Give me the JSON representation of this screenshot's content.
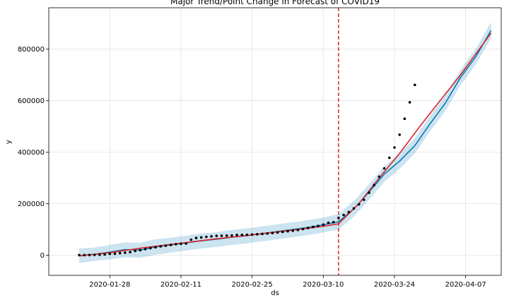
{
  "chart_data": {
    "type": "line",
    "title": "Major Trend/Point Change in Forecast of COVID19",
    "xlabel": "ds",
    "ylabel": "y",
    "x_tick_labels": [
      "2020-01-28",
      "2020-02-11",
      "2020-02-25",
      "2020-03-10",
      "2020-03-24",
      "2020-04-07"
    ],
    "y_tick_labels": [
      "0",
      "200000",
      "400000",
      "600000",
      "800000"
    ],
    "y_ticks": [
      0,
      200000,
      400000,
      600000,
      800000
    ],
    "xlim": [
      "2020-01-16",
      "2020-04-14"
    ],
    "ylim": [
      -78000,
      960000
    ],
    "grid": true,
    "changepoint": "2020-03-13",
    "colors": {
      "actual": "#000000",
      "forecast": "#0072b2",
      "trend": "#d62728",
      "interval": "#0072b2",
      "changepoint": "#d62728"
    },
    "series": [
      {
        "kind": "actual",
        "x": [
          "2020-01-22",
          "2020-01-23",
          "2020-01-24",
          "2020-01-25",
          "2020-01-26",
          "2020-01-27",
          "2020-01-28",
          "2020-01-29",
          "2020-01-30",
          "2020-01-31",
          "2020-02-01",
          "2020-02-02",
          "2020-02-03",
          "2020-02-04",
          "2020-02-05",
          "2020-02-06",
          "2020-02-07",
          "2020-02-08",
          "2020-02-09",
          "2020-02-10",
          "2020-02-11",
          "2020-02-12",
          "2020-02-13",
          "2020-02-14",
          "2020-02-15",
          "2020-02-16",
          "2020-02-17",
          "2020-02-18",
          "2020-02-19",
          "2020-02-20",
          "2020-02-21",
          "2020-02-22",
          "2020-02-23",
          "2020-02-24",
          "2020-02-25",
          "2020-02-26",
          "2020-02-27",
          "2020-02-28",
          "2020-02-29",
          "2020-03-01",
          "2020-03-02",
          "2020-03-03",
          "2020-03-04",
          "2020-03-05",
          "2020-03-06",
          "2020-03-07",
          "2020-03-08",
          "2020-03-09",
          "2020-03-10",
          "2020-03-11",
          "2020-03-12",
          "2020-03-13",
          "2020-03-14",
          "2020-03-15",
          "2020-03-16",
          "2020-03-17",
          "2020-03-18",
          "2020-03-19",
          "2020-03-20",
          "2020-03-21",
          "2020-03-22",
          "2020-03-23",
          "2020-03-24",
          "2020-03-25",
          "2020-03-26",
          "2020-03-27",
          "2020-03-28"
        ],
        "y": [
          555,
          654,
          941,
          1434,
          2118,
          2927,
          5578,
          6166,
          8234,
          9927,
          12038,
          16787,
          19881,
          23892,
          27636,
          30818,
          34392,
          37121,
          40151,
          42763,
          44803,
          45222,
          60370,
          66887,
          69032,
          71226,
          73260,
          75138,
          75641,
          76199,
          76843,
          78599,
          78985,
          79570,
          80415,
          81397,
          82756,
          84124,
          86013,
          88371,
          90309,
          92844,
          95124,
          97886,
          101800,
          105836,
          109835,
          113582,
          118582,
          125865,
          128343,
          145193,
          156099,
          167447,
          181546,
          197168,
          214915,
          242713,
          272167,
          304528,
          336953,
          378235,
          418045,
          467653,
          529591,
          593291,
          660706
        ]
      },
      {
        "kind": "forecast",
        "x": [
          "2020-01-22",
          "2020-01-25",
          "2020-01-28",
          "2020-01-31",
          "2020-02-03",
          "2020-02-06",
          "2020-02-09",
          "2020-02-12",
          "2020-02-15",
          "2020-02-18",
          "2020-02-21",
          "2020-02-24",
          "2020-02-27",
          "2020-03-01",
          "2020-03-04",
          "2020-03-07",
          "2020-03-10",
          "2020-03-13",
          "2020-03-16",
          "2020-03-19",
          "2020-03-22",
          "2020-03-25",
          "2020-03-28",
          "2020-03-31",
          "2020-04-03",
          "2020-04-06",
          "2020-04-09",
          "2020-04-12"
        ],
        "y": [
          -2000,
          4000,
          12000,
          22000,
          20000,
          32000,
          40000,
          48000,
          56000,
          62000,
          70000,
          76000,
          84000,
          92000,
          100000,
          108000,
          118000,
          130000,
          180000,
          245000,
          315000,
          365000,
          425000,
          510000,
          590000,
          690000,
          770000,
          872000
        ]
      },
      {
        "kind": "trend",
        "x": [
          "2020-01-22",
          "2020-01-28",
          "2020-02-04",
          "2020-02-11",
          "2020-02-18",
          "2020-02-25",
          "2020-03-03",
          "2020-03-10",
          "2020-03-13",
          "2020-03-17",
          "2020-03-21",
          "2020-03-25",
          "2020-03-29",
          "2020-04-02",
          "2020-04-06",
          "2020-04-12"
        ],
        "y": [
          -3000,
          10000,
          30000,
          47000,
          64000,
          79000,
          95000,
          112000,
          122000,
          200000,
          300000,
          395000,
          500000,
          600000,
          700000,
          862000
        ]
      },
      {
        "kind": "interval",
        "x": [
          "2020-01-22",
          "2020-01-25",
          "2020-01-28",
          "2020-01-31",
          "2020-02-03",
          "2020-02-06",
          "2020-02-09",
          "2020-02-12",
          "2020-02-15",
          "2020-02-18",
          "2020-02-21",
          "2020-02-24",
          "2020-02-27",
          "2020-03-01",
          "2020-03-04",
          "2020-03-07",
          "2020-03-10",
          "2020-03-13",
          "2020-03-16",
          "2020-03-19",
          "2020-03-22",
          "2020-03-25",
          "2020-03-28",
          "2020-03-31",
          "2020-04-03",
          "2020-04-06",
          "2020-04-09",
          "2020-04-12"
        ],
        "y_lower": [
          -30000,
          -22000,
          -16000,
          -8000,
          -10000,
          2000,
          10000,
          18000,
          26000,
          32000,
          40000,
          46000,
          54000,
          62000,
          70000,
          78000,
          88000,
          100000,
          150000,
          215000,
          285000,
          335000,
          395000,
          480000,
          560000,
          660000,
          740000,
          840000
        ],
        "y_upper": [
          26000,
          30000,
          40000,
          50000,
          48000,
          62000,
          68000,
          76000,
          84000,
          90000,
          98000,
          104000,
          112000,
          120000,
          128000,
          136000,
          146000,
          160000,
          210000,
          275000,
          345000,
          395000,
          455000,
          540000,
          620000,
          720000,
          800000,
          905000
        ]
      }
    ]
  }
}
